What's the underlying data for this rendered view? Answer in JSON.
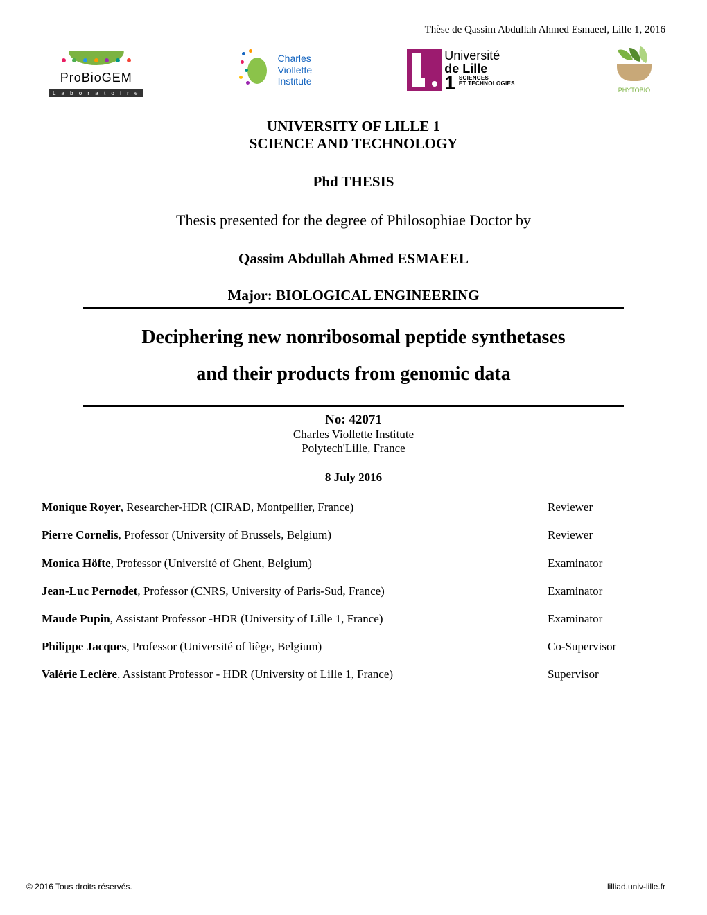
{
  "header_citation": "Thèse de Qassim Abdullah Ahmed Esmaeel, Lille 1, 2016",
  "logos": {
    "probiogem": {
      "text": "ProBioGEM",
      "subtext": "L a b o r a t o i r e"
    },
    "cvi": {
      "line1": "Charles",
      "line2": "Viollette",
      "line3": "Institute"
    },
    "lille": {
      "line1": "Université",
      "line2": "de Lille",
      "one": "1",
      "sub1": "SCIENCES",
      "sub2": "ET TECHNOLOGIES"
    },
    "phytobio": {
      "text": "PHYTOBIO"
    }
  },
  "heading": {
    "uni1": "UNIVERSITY OF LILLE 1",
    "uni2": "SCIENCE AND TECHNOLOGY",
    "phd": "Phd THESIS",
    "presented": "Thesis presented for the degree of Philosophiae Doctor by",
    "author": "Qassim Abdullah Ahmed ESMAEEL",
    "major": "Major: BIOLOGICAL ENGINEERING",
    "title1": "Deciphering new nonribosomal peptide synthetases",
    "title2": "and their products from genomic data",
    "number": "No: 42071",
    "institute": "Charles Viollette Institute",
    "location": "Polytech'Lille, France",
    "date": "8 July 2016"
  },
  "committee": [
    {
      "name": "Monique Royer",
      "affil": ", Researcher-HDR (CIRAD, Montpellier, France)",
      "role": "Reviewer"
    },
    {
      "name": "Pierre Cornelis",
      "affil": ", Professor (University of Brussels, Belgium)",
      "role": "Reviewer"
    },
    {
      "name": "Monica Höfte",
      "affil": ", Professor (Université of Ghent, Belgium)",
      "role": "Examinator"
    },
    {
      "name": "Jean-Luc Pernodet",
      "affil": ", Professor (CNRS, University of Paris-Sud, France)",
      "role": "Examinator"
    },
    {
      "name": "Maude Pupin",
      "affil": ", Assistant Professor -HDR (University of Lille 1, France)",
      "role": "Examinator"
    },
    {
      "name": "Philippe Jacques",
      "affil": ", Professor (Université of liège, Belgium)",
      "role": "Co-Supervisor"
    },
    {
      "name": "Valérie Leclère",
      "affil": ", Assistant Professor - HDR (University of Lille 1, France)",
      "role": "Supervisor"
    }
  ],
  "footer": {
    "left": "© 2016 Tous droits réservés.",
    "right": "lilliad.univ-lille.fr"
  },
  "colors": {
    "probiogem_green": "#7cb342",
    "cvi_blue": "#1565c0",
    "lille_purple": "#9c1b6f",
    "leaf_green": "#7cb342",
    "hand_tan": "#c8a878"
  }
}
